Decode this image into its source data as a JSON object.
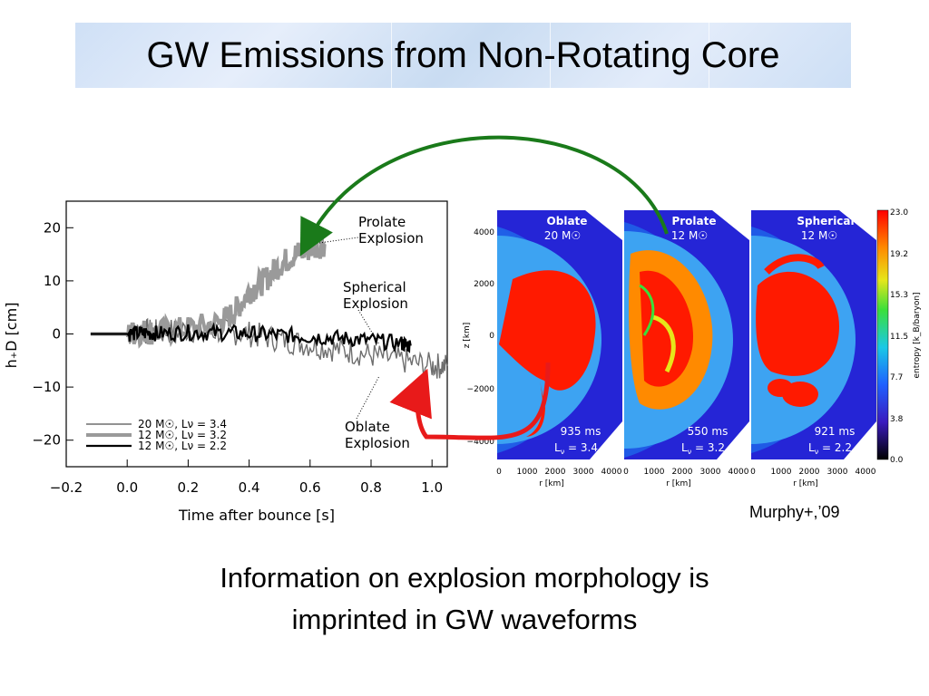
{
  "slide": {
    "title": "GW Emissions from Non-Rotating Core",
    "credit": "Murphy+,’09",
    "caption_line1": "Information on explosion morphology is",
    "caption_line2": "imprinted in GW waveforms"
  },
  "chart_data": {
    "type": "line",
    "xlabel": "Time after bounce [s]",
    "ylabel": "h+D [cm]",
    "xlim": [
      -0.2,
      1.05
    ],
    "ylim": [
      -25,
      25
    ],
    "x_ticks": [
      "−0.2",
      "0.0",
      "0.2",
      "0.4",
      "0.6",
      "0.8",
      "1.0"
    ],
    "y_ticks": [
      "20",
      "10",
      "0",
      "−10",
      "−20"
    ],
    "legend": [
      {
        "mass": "20 M",
        "lum": "3.4",
        "color": "#6e6e6e"
      },
      {
        "mass": "12 M",
        "lum": "3.2",
        "color": "#9a9a9a"
      },
      {
        "mass": "12 M",
        "lum": "2.2",
        "color": "#000000"
      }
    ],
    "annotations": {
      "prolate": [
        "Prolate",
        "Explosion"
      ],
      "spherical": [
        "Spherical",
        "Explosion"
      ],
      "oblate": [
        "Oblate",
        "Explosion"
      ]
    },
    "series": [
      {
        "name": "20 M, L = 3.4",
        "color": "#6e6e6e",
        "x": [
          -0.12,
          0.0,
          0.05,
          0.1,
          0.2,
          0.3,
          0.4,
          0.5,
          0.6,
          0.7,
          0.8,
          0.9,
          1.0,
          1.05
        ],
        "y": [
          0,
          0,
          0.5,
          0.3,
          0.8,
          0.5,
          0,
          -1,
          -2,
          -3,
          -4,
          -5,
          -6,
          -6
        ]
      },
      {
        "name": "12 M, L = 3.2",
        "color": "#9a9a9a",
        "x": [
          -0.12,
          0.0,
          0.05,
          0.1,
          0.2,
          0.3,
          0.35,
          0.4,
          0.45,
          0.5,
          0.55,
          0.6,
          0.65
        ],
        "y": [
          0,
          0,
          0.5,
          0.3,
          1,
          2,
          4,
          8,
          10,
          13,
          15,
          16,
          17
        ]
      },
      {
        "name": "12 M, L = 2.2",
        "color": "#000000",
        "x": [
          -0.12,
          0.0,
          0.05,
          0.1,
          0.2,
          0.3,
          0.4,
          0.5,
          0.6,
          0.7,
          0.8,
          0.9,
          0.93
        ],
        "y": [
          0,
          0,
          0.2,
          0.1,
          0.3,
          0.2,
          0.1,
          -0.2,
          -0.5,
          -0.8,
          -1.2,
          -1.8,
          -2.2
        ]
      }
    ]
  },
  "sims": {
    "panels": [
      {
        "title": "Oblate",
        "mass": "20 M",
        "time": "935 ms",
        "lum": "3.4"
      },
      {
        "title": "Prolate",
        "mass": "12 M",
        "time": "550 ms",
        "lum": "3.2"
      },
      {
        "title": "Spherical",
        "mass": "12 M",
        "time": "921 ms",
        "lum": "2.2"
      }
    ],
    "z_ticks": [
      "4000",
      "2000",
      "0",
      "−2000",
      "−4000"
    ],
    "r_ticks": [
      "0",
      "1000",
      "2000",
      "3000",
      "4000"
    ],
    "z_label": "z [km]",
    "r_label": "r [km]",
    "colorbar_ticks": [
      "23.0",
      "19.2",
      "15.3",
      "11.5",
      "7.7",
      "3.8",
      "0.0"
    ],
    "colorbar_label": "entropy [k_B/baryon]"
  }
}
